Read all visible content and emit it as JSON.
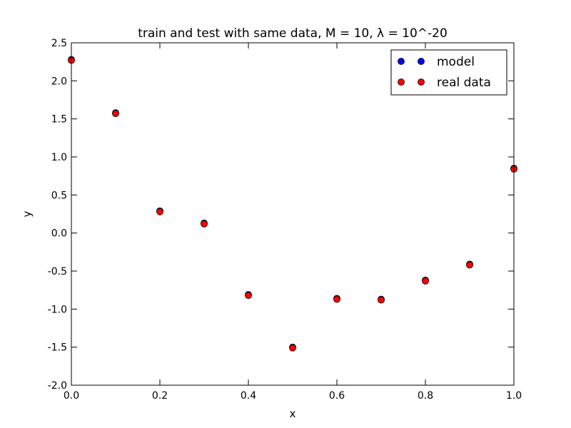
{
  "chart_data": {
    "type": "scatter",
    "title": "train and test with same data, M = 10, λ = 10^-20",
    "xlabel": "x",
    "ylabel": "y",
    "xlim": [
      0.0,
      1.0
    ],
    "ylim": [
      -2.0,
      2.5
    ],
    "xticks": [
      "0.0",
      "0.2",
      "0.4",
      "0.6",
      "0.8",
      "1.0"
    ],
    "yticks": [
      "-2.0",
      "-1.5",
      "-1.0",
      "-0.5",
      "0.0",
      "0.5",
      "1.0",
      "1.5",
      "2.0",
      "2.5"
    ],
    "grid": false,
    "legend_position": "top-right",
    "x": [
      0.0,
      0.1,
      0.2,
      0.3,
      0.4,
      0.5,
      0.6,
      0.7,
      0.8,
      0.9,
      1.0
    ],
    "series": [
      {
        "name": "model",
        "color": "#0000ff",
        "values": [
          2.28,
          1.58,
          0.29,
          0.13,
          -0.81,
          -1.5,
          -0.86,
          -0.87,
          -0.62,
          -0.41,
          0.85
        ]
      },
      {
        "name": "real data",
        "color": "#ff0000",
        "values": [
          2.27,
          1.57,
          0.28,
          0.12,
          -0.82,
          -1.51,
          -0.87,
          -0.88,
          -0.63,
          -0.42,
          0.84
        ]
      }
    ]
  }
}
